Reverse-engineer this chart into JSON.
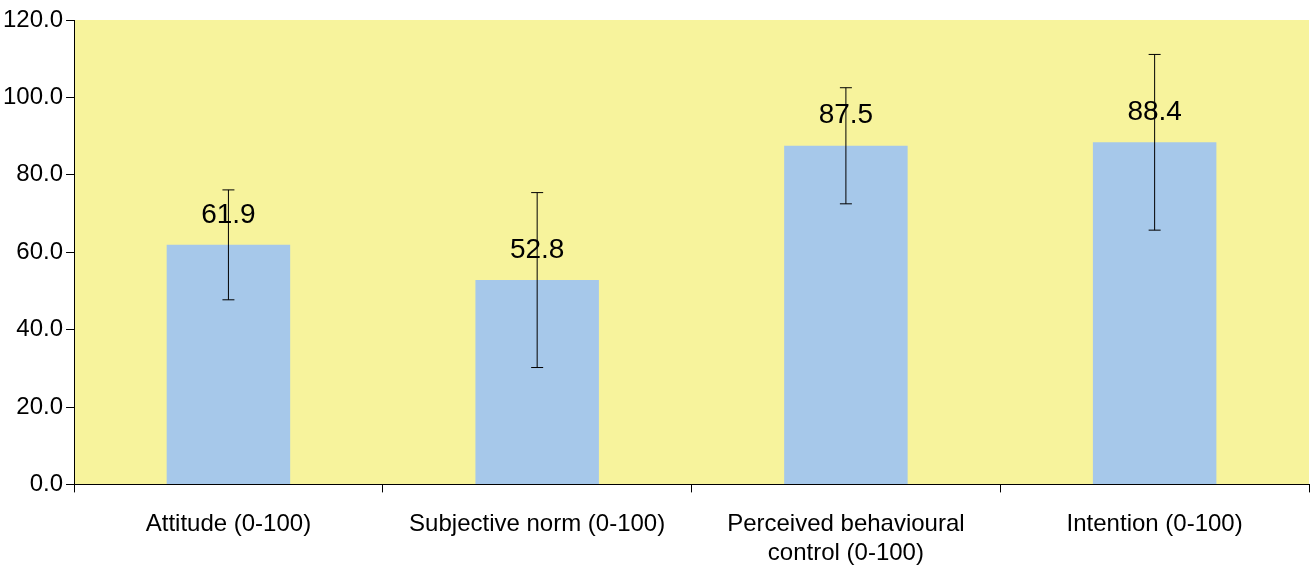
{
  "chart_data": {
    "type": "bar",
    "categories": [
      "Attitude (0-100)",
      "Subjective norm (0-100)",
      "Perceived behavioural control (0-100)",
      "Intention (0-100)"
    ],
    "values": [
      61.9,
      52.8,
      87.5,
      88.4
    ],
    "color": "#a6c8ea",
    "errors": [
      14.2,
      22.6,
      15,
      22.7
    ],
    "data_labels": true,
    "ylim": [
      0,
      120
    ],
    "yticks": [
      {
        "value": 0,
        "label": "0.0"
      },
      {
        "value": 20,
        "label": "20.0"
      },
      {
        "value": 40,
        "label": "40.0"
      },
      {
        "value": 60,
        "label": "60.0"
      },
      {
        "value": 80,
        "label": "80.0"
      },
      {
        "value": 100,
        "label": "100.0"
      },
      {
        "value": 120,
        "label": "120.0"
      }
    ],
    "grid": false,
    "legend": false
  }
}
